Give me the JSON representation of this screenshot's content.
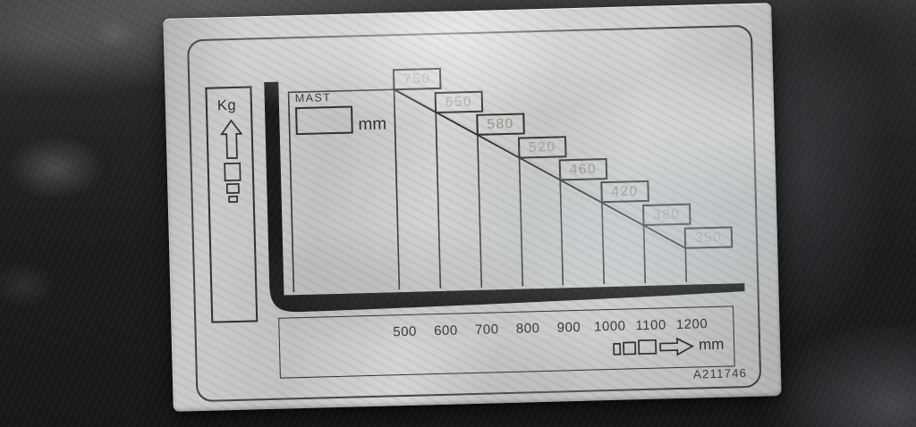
{
  "plate": {
    "serial": "A211746",
    "capacity_axis": {
      "label": "Kg"
    },
    "mast": {
      "label": "MAST",
      "value": "",
      "unit": "mm"
    },
    "load_center_axis": {
      "unit": "mm",
      "ticks": [
        "500",
        "600",
        "700",
        "800",
        "900",
        "1000",
        "1100",
        "1200"
      ]
    },
    "capacity_steps": [
      "750",
      "650",
      "580",
      "520",
      "460",
      "420",
      "380",
      "350"
    ]
  },
  "chart_data": {
    "type": "bar",
    "title": "",
    "categories": [
      500,
      600,
      700,
      800,
      900,
      1000,
      1100,
      1200
    ],
    "values": [
      750,
      650,
      580,
      520,
      460,
      420,
      380,
      350
    ],
    "xlabel": "mm",
    "ylabel": "Kg",
    "xlim": [
      500,
      1200
    ],
    "grid": false,
    "legend_position": "none"
  },
  "colors": {
    "plate": "#c9cac8",
    "ink": "#2f2f2c",
    "etched_value": "#8d8d87",
    "background": "#1b1c1e"
  }
}
